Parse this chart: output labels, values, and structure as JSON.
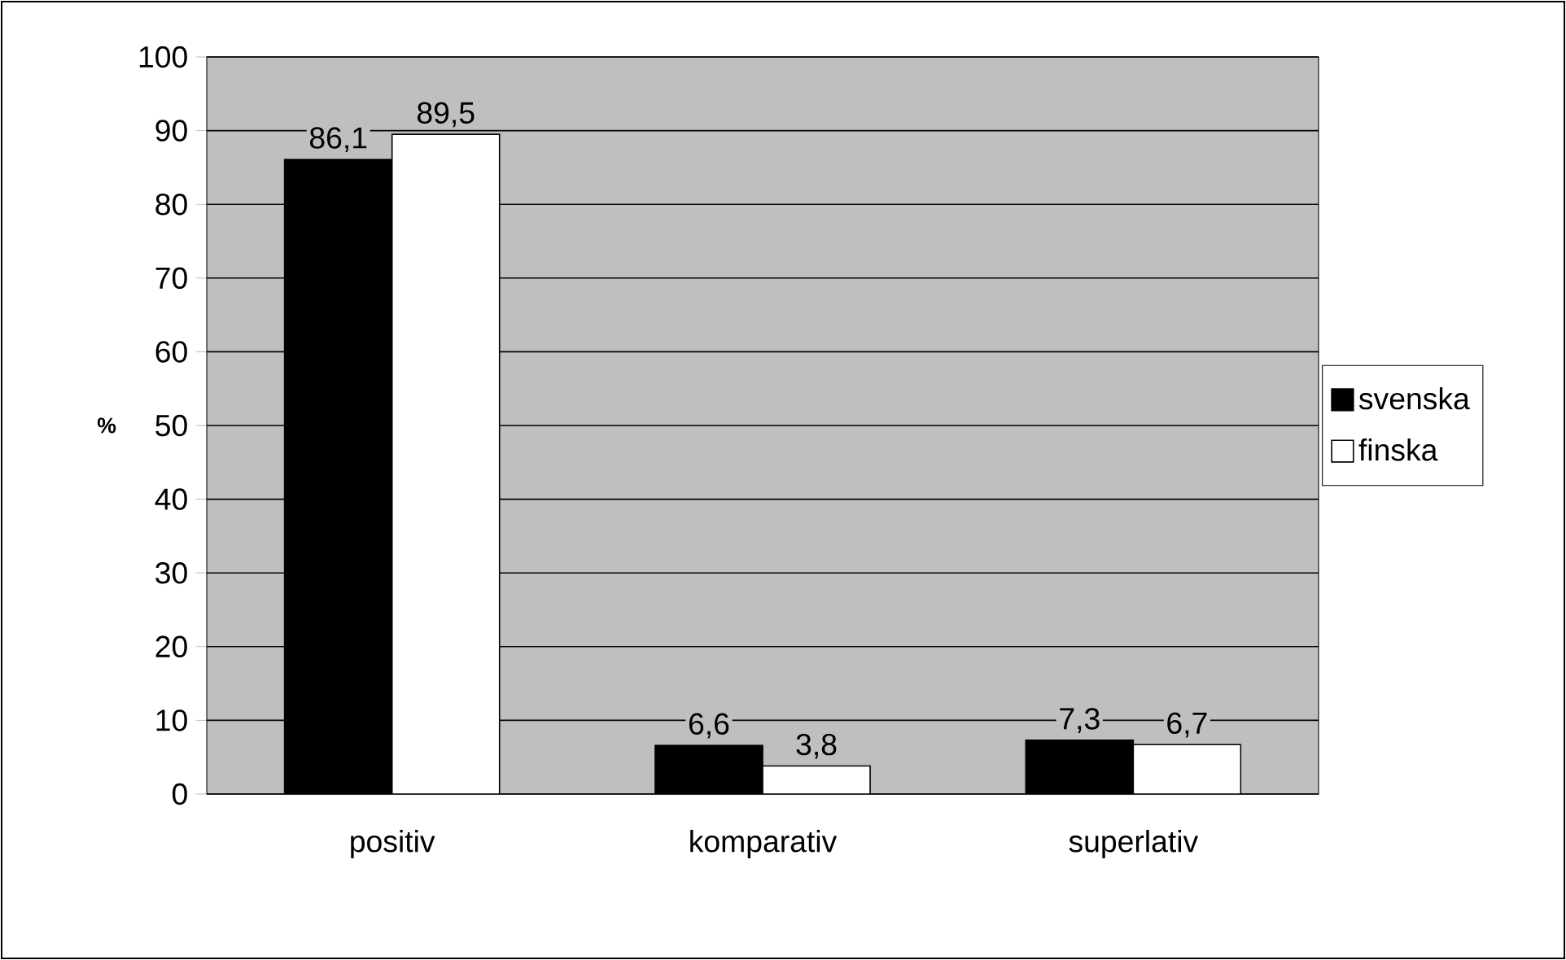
{
  "chart_data": {
    "type": "bar",
    "ylabel": "%",
    "categories": [
      "positiv",
      "komparativ",
      "superlativ"
    ],
    "series": [
      {
        "name": "svenska",
        "color": "#000000",
        "values": [
          86.1,
          6.6,
          7.3
        ],
        "value_labels": [
          "86,1",
          "6,6",
          "7,3"
        ]
      },
      {
        "name": "finska",
        "color": "#ffffff",
        "values": [
          89.5,
          3.8,
          6.7
        ],
        "value_labels": [
          "89,5",
          "3,8",
          "6,7"
        ]
      }
    ],
    "ylim": [
      0,
      100
    ],
    "yticks": [
      0,
      10,
      20,
      30,
      40,
      50,
      60,
      70,
      80,
      90,
      100
    ],
    "grid": "y",
    "legend": "right"
  }
}
